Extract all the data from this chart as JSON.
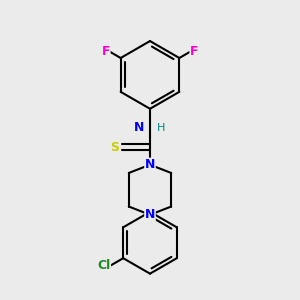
{
  "background_color": "#ebebeb",
  "bond_color": "#000000",
  "atom_colors": {
    "N": "#0000ff",
    "S": "#cccc00",
    "F": "#ff00cc",
    "Cl": "#228822",
    "H": "#008888",
    "C": "#000000"
  },
  "figure_size": [
    3.0,
    3.0
  ],
  "dpi": 100
}
